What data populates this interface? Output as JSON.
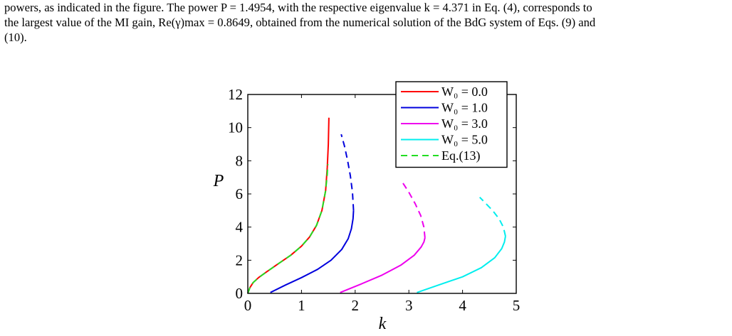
{
  "paragraph": {
    "line1": "powers, as indicated in the figure. The power P = 1.4954, with the respective eigenvalue k = 4.371 in Eq. (4), corresponds to",
    "line2": "the largest value of the MI gain, Re(γ)max = 0.8649, obtained from the numerical solution of the BdG system of Eqs. (9) and",
    "line3": "(10)."
  },
  "chart_data": {
    "type": "line",
    "xlabel": "k",
    "ylabel": "P",
    "xlim": [
      0,
      5
    ],
    "ylim": [
      0,
      12
    ],
    "xticks": [
      "0",
      "1",
      "2",
      "3",
      "4",
      "5"
    ],
    "yticks": [
      "0",
      "2",
      "4",
      "6",
      "8",
      "10",
      "12"
    ],
    "legend_position": "top-right",
    "colors": {
      "W0_0": "#ff0000",
      "W0_1": "#0000dd",
      "W0_3": "#ee00ee",
      "W0_5": "#00eeee",
      "eq13": "#22dd22"
    },
    "series": [
      {
        "name": "W0 = 0.0",
        "legend": "W₀ = 0.0",
        "color_key": "W0_0",
        "style": "solid",
        "x": [
          0,
          0.04,
          0.1,
          0.2,
          0.35,
          0.55,
          0.8,
          1.0,
          1.15,
          1.28,
          1.38,
          1.45,
          1.48,
          1.5,
          1.51
        ],
        "y": [
          0,
          0.35,
          0.65,
          0.95,
          1.3,
          1.75,
          2.3,
          2.85,
          3.4,
          4.1,
          5.0,
          6.2,
          7.6,
          9.0,
          10.6
        ]
      },
      {
        "name": "W0 = 1.0 (stable)",
        "legend": "W₀ = 1.0",
        "color_key": "W0_1",
        "style": "solid",
        "x": [
          0.42,
          0.7,
          1.0,
          1.3,
          1.55,
          1.75,
          1.87,
          1.93,
          1.96,
          1.97
        ],
        "y": [
          0.05,
          0.5,
          0.95,
          1.45,
          2.0,
          2.65,
          3.3,
          3.9,
          4.5,
          5.0
        ]
      },
      {
        "name": "W0 = 1.0 (unstable)",
        "color_key": "W0_1",
        "style": "dashed",
        "x": [
          1.97,
          1.95,
          1.91,
          1.86,
          1.8,
          1.74
        ],
        "y": [
          5.0,
          6.1,
          7.1,
          8.0,
          8.9,
          9.6
        ]
      },
      {
        "name": "W0 = 3.0 (stable)",
        "legend": "W₀ = 3.0",
        "color_key": "W0_3",
        "style": "solid",
        "x": [
          1.72,
          2.1,
          2.5,
          2.85,
          3.1,
          3.23,
          3.28,
          3.3
        ],
        "y": [
          0.05,
          0.55,
          1.1,
          1.7,
          2.3,
          2.8,
          3.1,
          3.35
        ]
      },
      {
        "name": "W0 = 3.0 (unstable)",
        "color_key": "W0_3",
        "style": "dashed",
        "x": [
          3.3,
          3.28,
          3.22,
          3.12,
          3.0,
          2.88
        ],
        "y": [
          3.35,
          4.0,
          4.7,
          5.4,
          6.1,
          6.7
        ]
      },
      {
        "name": "W0 = 5.0 (stable)",
        "legend": "W₀ = 5.0",
        "color_key": "W0_5",
        "style": "solid",
        "x": [
          3.15,
          3.55,
          4.0,
          4.35,
          4.6,
          4.73,
          4.78,
          4.8
        ],
        "y": [
          0.05,
          0.5,
          1.0,
          1.55,
          2.15,
          2.7,
          3.1,
          3.45
        ]
      },
      {
        "name": "W0 = 5.0 (unstable)",
        "color_key": "W0_5",
        "style": "dashed",
        "x": [
          4.8,
          4.76,
          4.68,
          4.56,
          4.44,
          4.32
        ],
        "y": [
          3.45,
          4.0,
          4.5,
          5.0,
          5.4,
          5.8
        ]
      },
      {
        "name": "Eq.(13)",
        "legend": "Eq.(13)",
        "color_key": "eq13",
        "style": "dashed",
        "x": [
          0,
          0.04,
          0.1,
          0.2,
          0.35,
          0.55,
          0.8,
          1.0,
          1.15,
          1.28,
          1.38,
          1.45,
          1.48,
          1.49
        ],
        "y": [
          0,
          0.35,
          0.65,
          0.95,
          1.3,
          1.75,
          2.3,
          2.85,
          3.4,
          4.1,
          5.0,
          6.2,
          7.2,
          7.8
        ]
      }
    ]
  }
}
